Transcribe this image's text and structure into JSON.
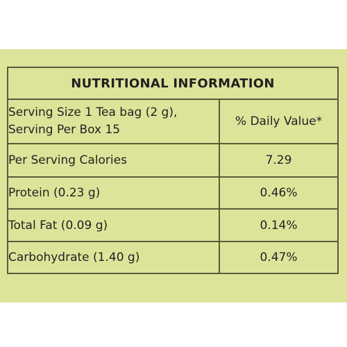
{
  "label": {
    "title": "NUTRITIONAL INFORMATION",
    "serving_line_1": "Serving Size 1 Tea bag (2 g),",
    "serving_line_2": "Serving Per Box 15",
    "daily_value_header": "% Daily Value*",
    "rows": [
      {
        "nutrient": "Per Serving Calories",
        "value": "7.29"
      },
      {
        "nutrient": "Protein (0.23 g)",
        "value": "0.46%"
      },
      {
        "nutrient": "Total Fat (0.09 g)",
        "value": "0.14%"
      },
      {
        "nutrient": "Carbohydrate (1.40 g)",
        "value": "0.47%"
      }
    ]
  },
  "colors": {
    "background": "#dde49a",
    "border": "#5a5a37",
    "text": "#231f20"
  }
}
